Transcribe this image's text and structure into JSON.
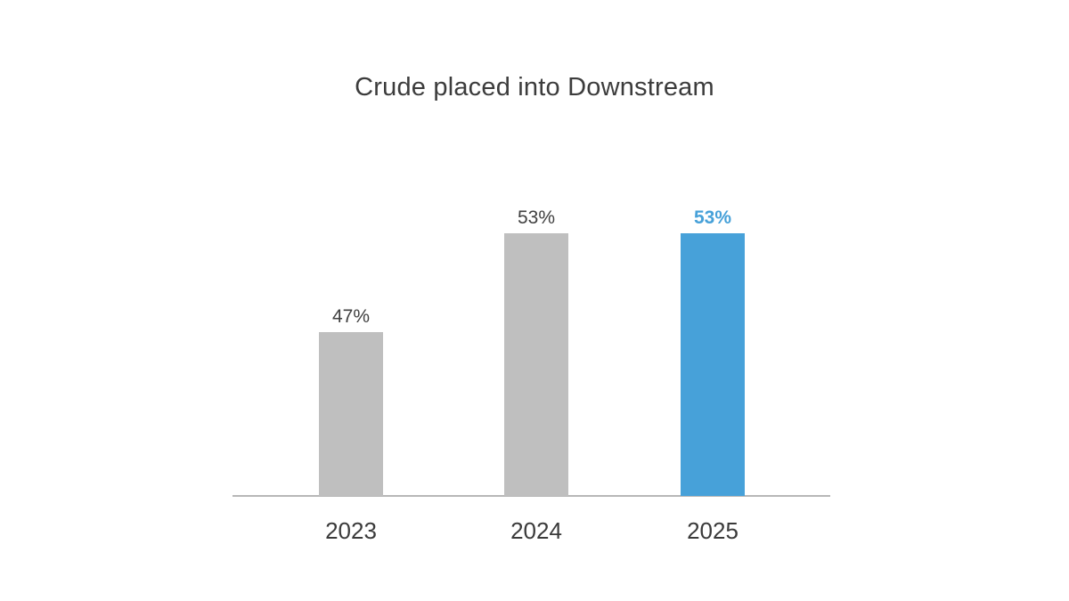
{
  "page": {
    "background": "#ffffff"
  },
  "chart_data": {
    "type": "bar",
    "title": "Crude placed into Downstream",
    "categories": [
      "2023",
      "2024",
      "2025"
    ],
    "values": [
      47,
      53,
      53
    ],
    "value_labels": [
      "47%",
      "53%",
      "53%"
    ],
    "unit": "%",
    "xlabel": "",
    "ylabel": "",
    "ylim": [
      37,
      55
    ],
    "grid": false,
    "legend": false,
    "y_axis_visible": false,
    "highlighted_category": "2025",
    "bar_colors": [
      "#bfbfbf",
      "#bfbfbf",
      "#47a1d9"
    ],
    "label_colors": [
      "#404040",
      "#404040",
      "#47a1d9"
    ],
    "label_bold": [
      false,
      false,
      true
    ],
    "colors": {
      "bar_default": "#bfbfbf",
      "bar_highlight": "#47a1d9",
      "axis_line": "#b7b7b7",
      "title_text": "#3c3c3c",
      "value_label_text": "#404040",
      "tick_label_text": "#3a3a3a"
    }
  }
}
